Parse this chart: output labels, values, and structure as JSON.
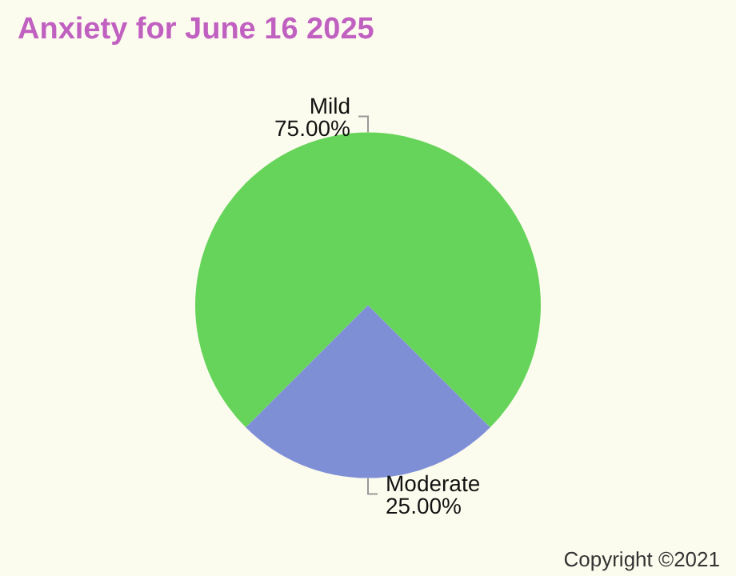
{
  "chart_data": {
    "type": "pie",
    "title": "Anxiety for June 16 2025",
    "categories": [
      "Mild",
      "Moderate"
    ],
    "values": [
      75,
      25
    ],
    "value_labels": [
      "75.00%",
      "25.00%"
    ],
    "colors": [
      "#66d45a",
      "#7f8fd6"
    ],
    "annotations": [
      "Copyright ©2021"
    ],
    "legend": false
  }
}
